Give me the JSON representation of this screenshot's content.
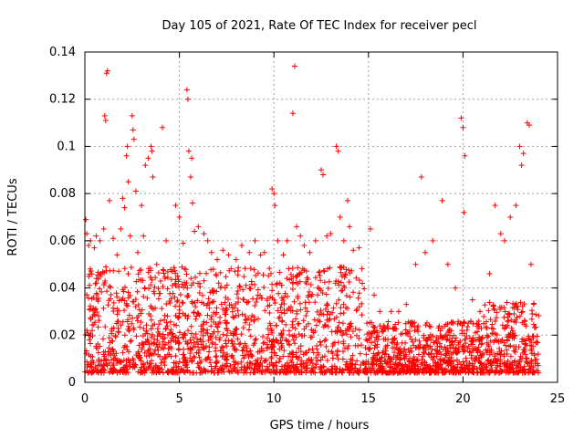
{
  "chart_data": {
    "type": "scatter",
    "title": "Day 105 of 2021, Rate Of TEC Index for receiver pecl",
    "xlabel": "GPS time / hours",
    "ylabel": "ROTI / TECUs",
    "xlim": [
      0,
      25
    ],
    "ylim": [
      0,
      0.14
    ],
    "xticks": [
      "0",
      "5",
      "10",
      "15",
      "20",
      "25"
    ],
    "yticks": [
      "0",
      "0.02",
      "0.04",
      "0.06",
      "0.08",
      "0.1",
      "0.12",
      "0.14"
    ],
    "grid": true,
    "marker": "plus",
    "color": "#ff0000",
    "points": [
      [
        0.05,
        0.069
      ],
      [
        0.1,
        0.063
      ],
      [
        0.2,
        0.058
      ],
      [
        0.3,
        0.06
      ],
      [
        0.5,
        0.057
      ],
      [
        0.6,
        0.062
      ],
      [
        0.8,
        0.06
      ],
      [
        1.0,
        0.065
      ],
      [
        1.05,
        0.113
      ],
      [
        1.1,
        0.111
      ],
      [
        1.15,
        0.131
      ],
      [
        1.2,
        0.132
      ],
      [
        1.3,
        0.077
      ],
      [
        1.5,
        0.061
      ],
      [
        1.7,
        0.054
      ],
      [
        1.9,
        0.065
      ],
      [
        2.0,
        0.078
      ],
      [
        2.1,
        0.074
      ],
      [
        2.2,
        0.096
      ],
      [
        2.25,
        0.1
      ],
      [
        2.3,
        0.085
      ],
      [
        2.4,
        0.062
      ],
      [
        2.5,
        0.113
      ],
      [
        2.55,
        0.107
      ],
      [
        2.6,
        0.103
      ],
      [
        2.7,
        0.081
      ],
      [
        2.8,
        0.055
      ],
      [
        3.0,
        0.075
      ],
      [
        3.1,
        0.062
      ],
      [
        3.2,
        0.092
      ],
      [
        3.35,
        0.095
      ],
      [
        3.5,
        0.1
      ],
      [
        3.55,
        0.098
      ],
      [
        3.6,
        0.087
      ],
      [
        3.8,
        0.05
      ],
      [
        4.1,
        0.108
      ],
      [
        4.3,
        0.06
      ],
      [
        4.6,
        0.047
      ],
      [
        4.8,
        0.075
      ],
      [
        5.0,
        0.07
      ],
      [
        5.2,
        0.059
      ],
      [
        5.4,
        0.124
      ],
      [
        5.45,
        0.12
      ],
      [
        5.5,
        0.098
      ],
      [
        5.6,
        0.087
      ],
      [
        5.65,
        0.095
      ],
      [
        5.7,
        0.076
      ],
      [
        5.8,
        0.064
      ],
      [
        6.0,
        0.066
      ],
      [
        6.3,
        0.063
      ],
      [
        6.5,
        0.06
      ],
      [
        6.7,
        0.055
      ],
      [
        7.0,
        0.052
      ],
      [
        7.3,
        0.056
      ],
      [
        7.6,
        0.054
      ],
      [
        8.0,
        0.052
      ],
      [
        8.3,
        0.058
      ],
      [
        8.7,
        0.055
      ],
      [
        9.0,
        0.06
      ],
      [
        9.3,
        0.054
      ],
      [
        9.5,
        0.055
      ],
      [
        9.9,
        0.082
      ],
      [
        10.0,
        0.08
      ],
      [
        10.05,
        0.075
      ],
      [
        10.2,
        0.06
      ],
      [
        10.5,
        0.054
      ],
      [
        10.7,
        0.06
      ],
      [
        11.0,
        0.114
      ],
      [
        11.1,
        0.134
      ],
      [
        11.2,
        0.066
      ],
      [
        11.4,
        0.062
      ],
      [
        11.6,
        0.058
      ],
      [
        11.9,
        0.055
      ],
      [
        12.2,
        0.06
      ],
      [
        12.5,
        0.09
      ],
      [
        12.6,
        0.088
      ],
      [
        12.8,
        0.062
      ],
      [
        13.0,
        0.063
      ],
      [
        13.3,
        0.1
      ],
      [
        13.4,
        0.098
      ],
      [
        13.5,
        0.07
      ],
      [
        13.7,
        0.06
      ],
      [
        13.9,
        0.077
      ],
      [
        14.0,
        0.066
      ],
      [
        14.2,
        0.056
      ],
      [
        14.5,
        0.057
      ],
      [
        15.1,
        0.065
      ],
      [
        15.3,
        0.037
      ],
      [
        15.6,
        0.03
      ],
      [
        16.2,
        0.03
      ],
      [
        16.6,
        0.03
      ],
      [
        17.0,
        0.033
      ],
      [
        17.5,
        0.05
      ],
      [
        17.8,
        0.087
      ],
      [
        18.0,
        0.055
      ],
      [
        18.4,
        0.06
      ],
      [
        18.9,
        0.077
      ],
      [
        19.2,
        0.05
      ],
      [
        19.6,
        0.04
      ],
      [
        19.9,
        0.112
      ],
      [
        20.0,
        0.108
      ],
      [
        20.05,
        0.072
      ],
      [
        20.1,
        0.096
      ],
      [
        20.5,
        0.035
      ],
      [
        20.9,
        0.03
      ],
      [
        21.4,
        0.046
      ],
      [
        21.7,
        0.075
      ],
      [
        22.0,
        0.063
      ],
      [
        22.2,
        0.06
      ],
      [
        22.5,
        0.07
      ],
      [
        22.8,
        0.075
      ],
      [
        23.0,
        0.1
      ],
      [
        23.1,
        0.092
      ],
      [
        23.2,
        0.097
      ],
      [
        23.4,
        0.11
      ],
      [
        23.5,
        0.109
      ],
      [
        23.6,
        0.05
      ]
    ]
  }
}
